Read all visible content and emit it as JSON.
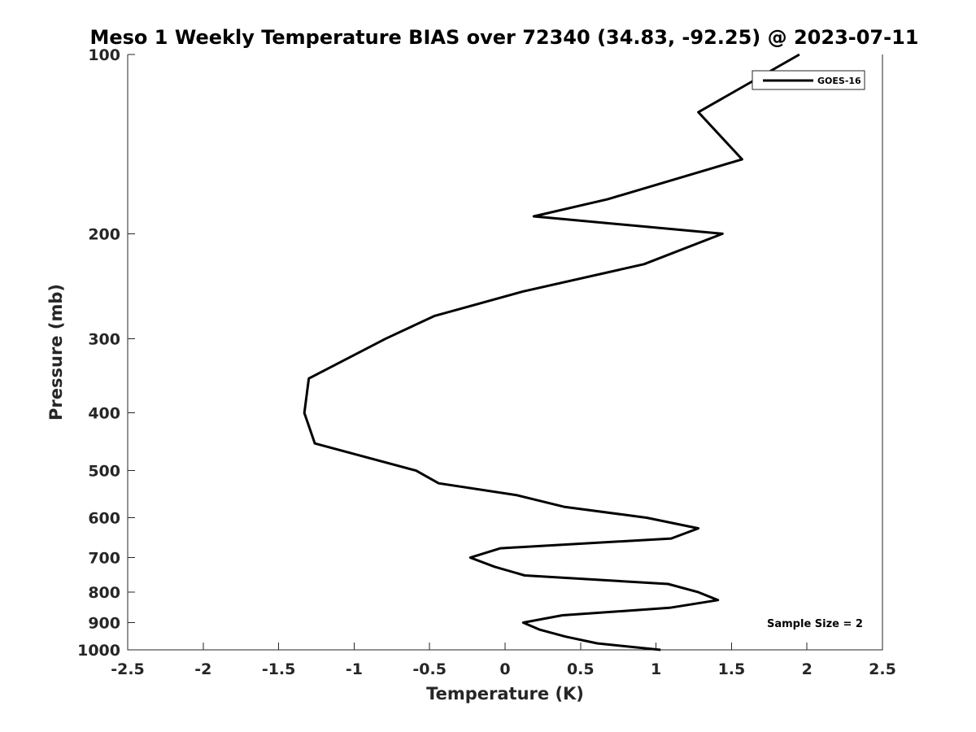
{
  "chart_data": {
    "type": "line",
    "title": "Meso 1 Weekly Temperature BIAS over 72340 (34.83, -92.25) @ 2023-07-11",
    "xlabel": "Temperature (K)",
    "ylabel": "Pressure (mb)",
    "xlim": [
      -2.5,
      2.5
    ],
    "ylim": [
      100,
      1000
    ],
    "y_scale": "log",
    "y_reversed": true,
    "x_ticks": [
      -2.5,
      -2,
      -1.5,
      -1,
      -0.5,
      0,
      0.5,
      1,
      1.5,
      2,
      2.5
    ],
    "x_tick_labels": [
      "-2.5",
      "-2",
      "-1.5",
      "-1",
      "-0.5",
      "0",
      "0.5",
      "1",
      "1.5",
      "2",
      "2.5"
    ],
    "y_ticks": [
      100,
      200,
      300,
      400,
      500,
      600,
      700,
      800,
      900,
      1000
    ],
    "y_tick_labels": [
      "100",
      "200",
      "300",
      "400",
      "500",
      "600",
      "700",
      "800",
      "900",
      "1000"
    ],
    "grid": false,
    "legend_position": "top-right",
    "annotation": "Sample Size = 2",
    "series": [
      {
        "name": "GOES-16",
        "color": "#000000",
        "points": [
          {
            "x": 1.95,
            "y": 100
          },
          {
            "x": 1.28,
            "y": 125
          },
          {
            "x": 1.57,
            "y": 150
          },
          {
            "x": 0.68,
            "y": 175
          },
          {
            "x": 0.19,
            "y": 187
          },
          {
            "x": 1.44,
            "y": 200
          },
          {
            "x": 0.92,
            "y": 225
          },
          {
            "x": 0.12,
            "y": 250
          },
          {
            "x": -0.47,
            "y": 275
          },
          {
            "x": -0.79,
            "y": 300
          },
          {
            "x": -1.3,
            "y": 350
          },
          {
            "x": -1.33,
            "y": 400
          },
          {
            "x": -1.26,
            "y": 450
          },
          {
            "x": -0.59,
            "y": 500
          },
          {
            "x": -0.44,
            "y": 525
          },
          {
            "x": 0.08,
            "y": 550
          },
          {
            "x": 0.39,
            "y": 575
          },
          {
            "x": 0.94,
            "y": 600
          },
          {
            "x": 1.28,
            "y": 625
          },
          {
            "x": 1.1,
            "y": 650
          },
          {
            "x": -0.03,
            "y": 675
          },
          {
            "x": -0.23,
            "y": 700
          },
          {
            "x": -0.07,
            "y": 725
          },
          {
            "x": 0.13,
            "y": 750
          },
          {
            "x": 1.08,
            "y": 775
          },
          {
            "x": 1.28,
            "y": 800
          },
          {
            "x": 1.41,
            "y": 825
          },
          {
            "x": 1.09,
            "y": 850
          },
          {
            "x": 0.38,
            "y": 875
          },
          {
            "x": 0.12,
            "y": 900
          },
          {
            "x": 0.23,
            "y": 925
          },
          {
            "x": 0.4,
            "y": 950
          },
          {
            "x": 0.61,
            "y": 975
          },
          {
            "x": 1.03,
            "y": 1000
          }
        ]
      }
    ]
  }
}
